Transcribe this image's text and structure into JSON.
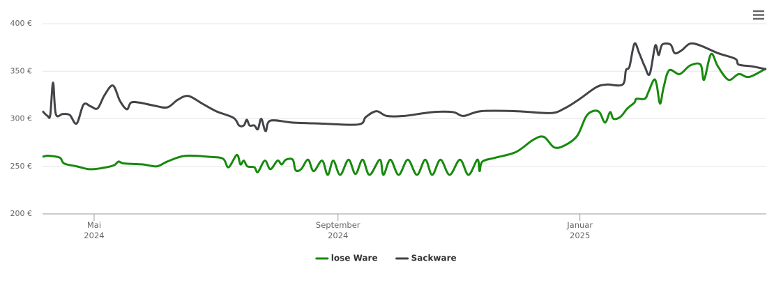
{
  "chart_data": {
    "type": "line",
    "xlim": [
      0,
      365
    ],
    "xticks": [
      {
        "value": 26,
        "label": "Mai 2024"
      },
      {
        "value": 149,
        "label": "September 2024"
      },
      {
        "value": 271,
        "label": "Januar 2025"
      }
    ],
    "ylim": [
      200,
      400
    ],
    "yticks": [
      {
        "value": 200,
        "label": "200 €"
      },
      {
        "value": 250,
        "label": "250 €"
      },
      {
        "value": 300,
        "label": "300 €"
      },
      {
        "value": 350,
        "label": "350 €"
      },
      {
        "value": 400,
        "label": "400 €"
      }
    ],
    "grid": true,
    "legend": "bottom",
    "series": [
      {
        "name": "lose Ware",
        "color": "#178a0e",
        "x": [
          0,
          1.8,
          3.9,
          8.8,
          10.9,
          17.2,
          23.6,
          29.5,
          35.9,
          38.3,
          41.1,
          50.6,
          57.6,
          62.9,
          71.7,
          84,
          91,
          93.8,
          98,
          99.8,
          101.5,
          103.3,
          106.8,
          108.6,
          112.1,
          114.9,
          118.5,
          120.6,
          122.7,
          126.2,
          127.6,
          130.4,
          133.9,
          136.7,
          141,
          143.8,
          146.6,
          150.1,
          154.3,
          157.8,
          161.4,
          164.9,
          170.1,
          171.9,
          175.4,
          179.6,
          184.2,
          188.8,
          193,
          196.5,
          200.7,
          205.3,
          210.5,
          214.8,
          219.3,
          220.4,
          221.8,
          228.2,
          238.7,
          247.5,
          252.8,
          258,
          263.3,
          269.6,
          274,
          277.5,
          280.8,
          283.7,
          286.2,
          287.9,
          291.4,
          295,
          298.5,
          299.5,
          303.7,
          305.5,
          308.3,
          309.7,
          311.4,
          313.2,
          316,
          321.3,
          326.5,
          331.8,
          333.6,
          337.1,
          340.6,
          345.9,
          351.1,
          356.4,
          364.9
        ],
        "values": [
          260,
          261,
          261,
          259,
          253,
          250,
          247,
          248,
          251,
          255,
          253,
          252,
          250,
          255,
          261,
          260,
          258,
          249,
          262,
          252,
          256,
          250,
          249,
          244,
          256,
          247,
          256,
          252,
          257,
          257,
          246,
          247,
          257,
          245,
          256,
          241,
          256,
          241,
          257,
          242,
          257,
          241,
          257,
          241,
          257,
          241,
          257,
          241,
          257,
          241,
          257,
          241,
          257,
          241,
          257,
          245,
          255,
          259,
          265,
          278,
          281,
          270,
          272,
          282,
          302,
          308,
          307,
          296,
          307,
          300,
          302,
          311,
          317,
          321,
          321,
          328,
          341,
          336,
          316,
          333,
          351,
          347,
          356,
          357,
          341,
          368,
          355,
          341,
          347,
          344,
          353
        ]
      },
      {
        "name": "Sackware",
        "color": "#434348",
        "x": [
          0,
          2.5,
          3.9,
          5.3,
          6.7,
          10.2,
          13.7,
          17.2,
          20.7,
          24.3,
          27.8,
          31.3,
          35.5,
          39,
          42.5,
          44.6,
          48.9,
          55.9,
          62.9,
          68.2,
          73.5,
          80.5,
          87.5,
          96.3,
          99.1,
          101.5,
          103,
          104.4,
          106.8,
          108.6,
          110.3,
          112.5,
          114.9,
          126.2,
          140.2,
          159.2,
          163.1,
          168.4,
          173.6,
          182.4,
          196.5,
          207,
          212.3,
          221.1,
          238.7,
          256.2,
          263.3,
          270.3,
          279.1,
          284.4,
          292.5,
          294.2,
          296,
          298.5,
          300.9,
          303.7,
          306.2,
          309,
          310.7,
          312.5,
          316.7,
          318.8,
          322.3,
          326.5,
          331.8,
          340.6,
          349.4,
          351.1,
          358.2,
          364.9
        ],
        "values": [
          308,
          303,
          304,
          338,
          305,
          305,
          304,
          295,
          315,
          313,
          311,
          325,
          335,
          319,
          310,
          317,
          317,
          314,
          312,
          320,
          324,
          316,
          308,
          301,
          293,
          293,
          299,
          293,
          293,
          289,
          300,
          287,
          298,
          296,
          295,
          294,
          302,
          308,
          303,
          303,
          307,
          307,
          303,
          308,
          308,
          306,
          311,
          320,
          333,
          336,
          336,
          351,
          355,
          379,
          369,
          355,
          347,
          377,
          367,
          378,
          378,
          369,
          372,
          379,
          377,
          369,
          363,
          357,
          355,
          352
        ]
      }
    ]
  }
}
